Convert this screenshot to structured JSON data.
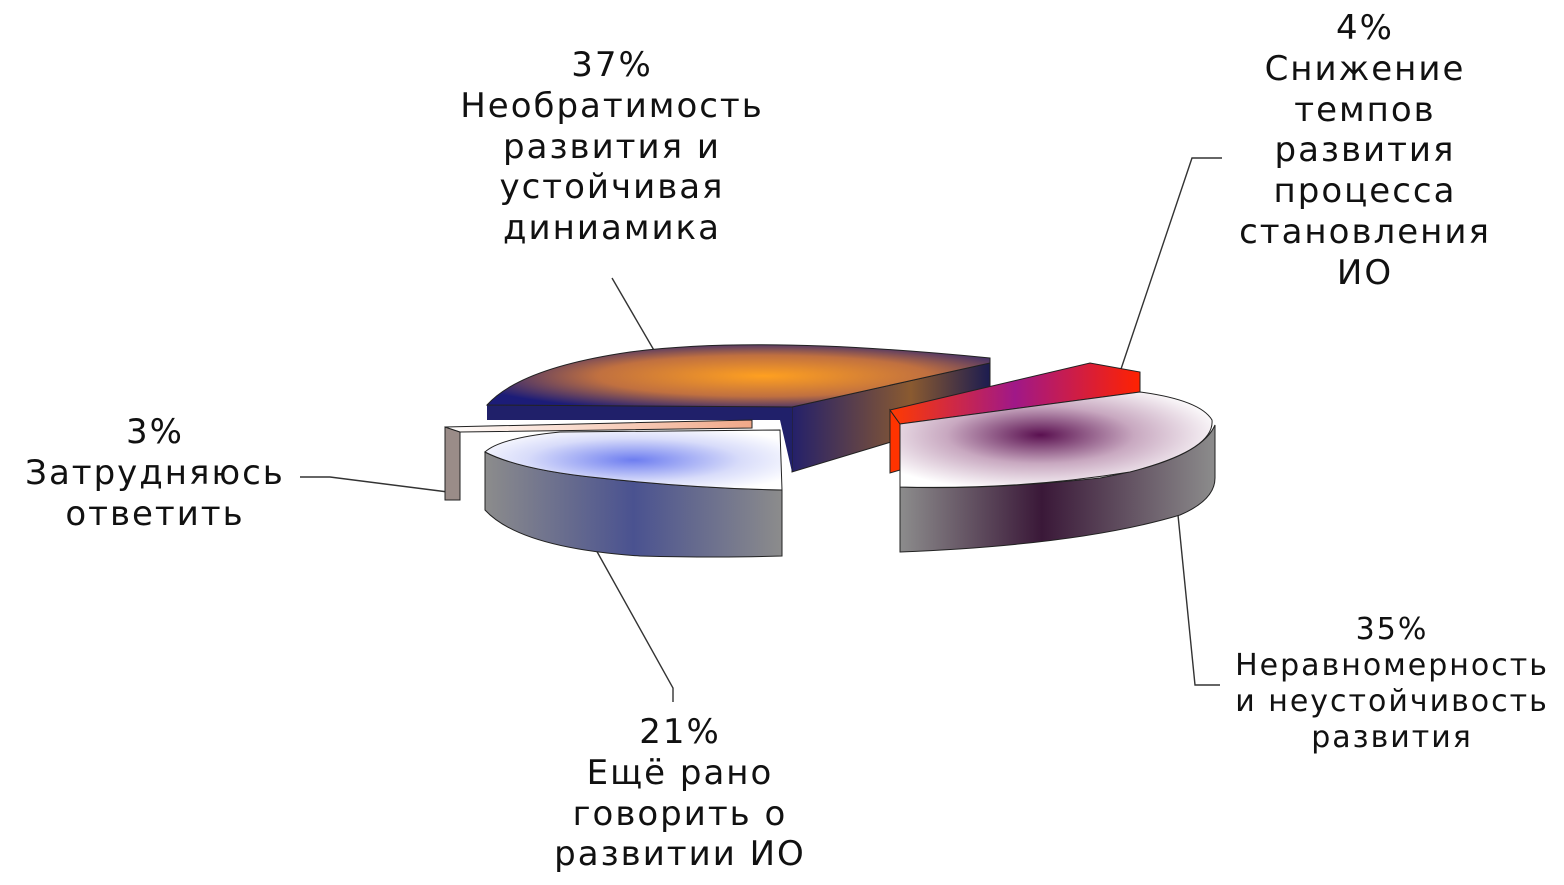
{
  "chart_data": {
    "type": "pie",
    "style": "3d-exploded",
    "slices": [
      {
        "label": "Необратимость развития и устойчивая диниамика",
        "value": 37,
        "value_label": "37%",
        "lines": [
          "Необратимость",
          "развития и",
          "устойчивая",
          "диниамика"
        ],
        "color": "#f39a2a",
        "edge": "#1f1a6b"
      },
      {
        "label": "Снижение темпов развития процесса становления ИО",
        "value": 4,
        "value_label": "4%",
        "lines": [
          "Снижение",
          "темпов",
          "развития",
          "процесса",
          "становления",
          "ИО"
        ],
        "color": "#b0168a",
        "edge": "#ff3300"
      },
      {
        "label": "Неравномерность и неустойчивость развития",
        "value": 35,
        "value_label": "35%",
        "lines": [
          "Неравномерность",
          "и неустойчивость",
          "развития"
        ],
        "color": "#6b1f5e",
        "edge": "#8a8a8a"
      },
      {
        "label": "Ещё рано говорить о развитии ИО",
        "value": 21,
        "value_label": "21%",
        "lines": [
          "Ещё рано",
          "говорить о",
          "развитии ИО"
        ],
        "color": "#6a7ae8",
        "edge": "#7a7a7a"
      },
      {
        "label": "Затрудняюсь ответить",
        "value": 3,
        "value_label": "3%",
        "lines": [
          "Затрудняюсь",
          "ответить"
        ],
        "color": "#f0b8a0",
        "edge": "#8a8a8a"
      }
    ],
    "legend": "none"
  }
}
